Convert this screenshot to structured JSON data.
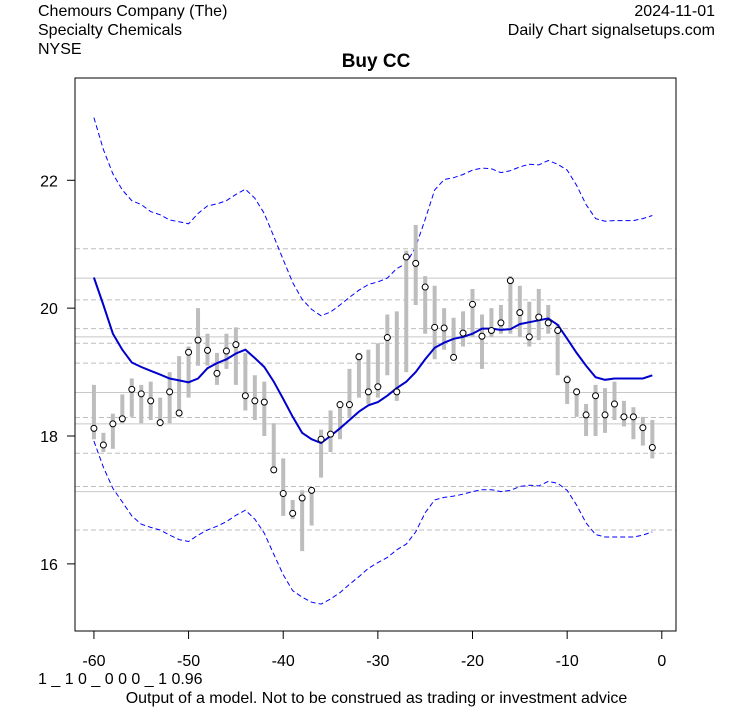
{
  "header": {
    "company": "Chemours Company (The)",
    "sector": "Specialty Chemicals",
    "exchange": "NYSE",
    "date": "2024-11-01",
    "source": "Daily Chart signalsetups.com"
  },
  "footer": {
    "code": "1 _ 1 0 _ 0 0 0 _ 1 0.96",
    "disclaimer": "Output of a model. Not to be construed as trading or investment advice"
  },
  "colors": {
    "range_bar": "#bdbdbd",
    "moving_average": "#0000cc",
    "band": "#0000ff",
    "grid_solid": "#c8c8c8",
    "grid_dashed": "#bebebe"
  },
  "chart_data": {
    "type": "line",
    "title": "Buy CC",
    "xlabel": "",
    "ylabel": "",
    "xlim": [
      -62,
      1.5
    ],
    "ylim": [
      14.95,
      23.6
    ],
    "x_ticks": [
      -60,
      -50,
      -40,
      -30,
      -20,
      -10,
      0
    ],
    "y_ticks": [
      16,
      18,
      20,
      22
    ],
    "x": [
      -60,
      -59,
      -58,
      -57,
      -56,
      -55,
      -54,
      -53,
      -52,
      -51,
      -50,
      -49,
      -48,
      -47,
      -46,
      -45,
      -44,
      -43,
      -42,
      -41,
      -40,
      -39,
      -38,
      -37,
      -36,
      -35,
      -34,
      -33,
      -32,
      -31,
      -30,
      -29,
      -28,
      -27,
      -26,
      -25,
      -24,
      -23,
      -22,
      -21,
      -20,
      -19,
      -18,
      -17,
      -16,
      -15,
      -14,
      -13,
      -12,
      -11,
      -10,
      -9,
      -8,
      -7,
      -6,
      -5,
      -4,
      -3,
      -2,
      -1
    ],
    "close": [
      18.12,
      17.86,
      18.19,
      18.27,
      18.73,
      18.66,
      18.55,
      18.21,
      18.69,
      18.36,
      19.31,
      19.5,
      19.34,
      18.98,
      19.33,
      19.43,
      18.63,
      18.55,
      18.53,
      17.47,
      17.1,
      16.79,
      17.03,
      17.15,
      17.95,
      18.03,
      18.49,
      18.49,
      19.24,
      18.69,
      18.77,
      19.54,
      18.69,
      20.8,
      20.7,
      20.33,
      19.7,
      19.69,
      19.23,
      19.61,
      20.06,
      19.56,
      19.65,
      19.77,
      20.43,
      19.93,
      19.55,
      19.86,
      19.77,
      19.65,
      18.88,
      18.69,
      18.33,
      18.63,
      18.33,
      18.5,
      18.3,
      18.3,
      18.13,
      17.82
    ],
    "high": [
      18.8,
      18.05,
      18.35,
      18.65,
      18.9,
      18.8,
      18.85,
      18.6,
      19.0,
      19.25,
      19.4,
      20.0,
      19.6,
      19.3,
      19.6,
      19.7,
      19.3,
      18.95,
      18.85,
      18.2,
      17.65,
      17.0,
      17.15,
      17.2,
      18.1,
      18.4,
      18.55,
      19.05,
      19.3,
      19.35,
      19.45,
      19.9,
      19.95,
      20.9,
      21.3,
      20.5,
      20.35,
      20.0,
      19.85,
      19.95,
      20.3,
      19.9,
      20.0,
      20.05,
      20.5,
      20.35,
      20.1,
      20.3,
      20.05,
      19.75,
      18.95,
      18.75,
      18.5,
      18.8,
      18.75,
      18.85,
      18.55,
      18.45,
      18.3,
      18.25
    ],
    "low": [
      17.95,
      17.75,
      17.8,
      18.2,
      18.3,
      18.2,
      18.25,
      18.15,
      18.2,
      18.3,
      18.6,
      19.1,
      19.1,
      18.8,
      19.05,
      18.8,
      18.4,
      18.25,
      18.0,
      17.45,
      16.75,
      16.7,
      16.2,
      16.6,
      17.35,
      17.75,
      17.95,
      18.3,
      18.6,
      18.5,
      18.6,
      18.95,
      18.55,
      19.0,
      20.05,
      19.6,
      19.2,
      19.35,
      19.2,
      19.4,
      19.55,
      19.05,
      19.55,
      19.6,
      19.6,
      19.55,
      19.4,
      19.5,
      19.6,
      18.95,
      18.5,
      18.3,
      18.0,
      18.0,
      18.05,
      18.25,
      18.15,
      17.95,
      17.85,
      17.65
    ],
    "moving_average": [
      20.48,
      20.05,
      19.6,
      19.35,
      19.15,
      19.08,
      19.02,
      18.96,
      18.9,
      18.87,
      18.84,
      18.9,
      19.06,
      19.14,
      19.2,
      19.29,
      19.35,
      19.22,
      19.08,
      18.85,
      18.58,
      18.3,
      18.05,
      17.95,
      17.89,
      18.0,
      18.12,
      18.25,
      18.38,
      18.48,
      18.53,
      18.63,
      18.75,
      18.85,
      19.0,
      19.2,
      19.38,
      19.46,
      19.52,
      19.55,
      19.6,
      19.68,
      19.68,
      19.66,
      19.67,
      19.75,
      19.78,
      19.81,
      19.84,
      19.74,
      19.52,
      19.3,
      19.1,
      18.92,
      18.88,
      18.9,
      18.9,
      18.9,
      18.9,
      18.95
    ],
    "upper_band": [
      22.98,
      22.48,
      22.1,
      21.85,
      21.68,
      21.62,
      21.51,
      21.46,
      21.38,
      21.35,
      21.32,
      21.48,
      21.6,
      21.63,
      21.68,
      21.78,
      21.86,
      21.72,
      21.48,
      21.12,
      20.76,
      20.4,
      20.14,
      19.98,
      19.88,
      19.94,
      20.05,
      20.17,
      20.28,
      20.37,
      20.41,
      20.47,
      20.62,
      20.7,
      20.96,
      21.39,
      21.85,
      22.01,
      22.04,
      22.09,
      22.16,
      22.19,
      22.18,
      22.12,
      22.15,
      22.21,
      22.25,
      22.24,
      22.31,
      22.25,
      22.16,
      21.92,
      21.62,
      21.4,
      21.36,
      21.37,
      21.37,
      21.37,
      21.4,
      21.45
    ],
    "lower_band": [
      17.92,
      17.51,
      17.18,
      16.97,
      16.75,
      16.62,
      16.57,
      16.53,
      16.45,
      16.38,
      16.35,
      16.45,
      16.53,
      16.59,
      16.66,
      16.76,
      16.84,
      16.7,
      16.48,
      16.15,
      15.83,
      15.58,
      15.48,
      15.4,
      15.37,
      15.45,
      15.55,
      15.68,
      15.8,
      15.93,
      16.02,
      16.1,
      16.22,
      16.31,
      16.5,
      16.8,
      17.0,
      17.04,
      17.06,
      17.09,
      17.13,
      17.16,
      17.16,
      17.13,
      17.15,
      17.21,
      17.23,
      17.22,
      17.29,
      17.26,
      17.15,
      16.92,
      16.64,
      16.46,
      16.42,
      16.42,
      16.42,
      16.42,
      16.45,
      16.5
    ],
    "solid_levels": [
      20.47,
      19.55,
      18.68,
      18.19,
      17.13
    ],
    "dashed_levels": [
      20.93,
      20.13,
      19.68,
      19.45,
      19.14,
      18.29,
      17.73,
      17.21,
      16.53
    ]
  }
}
